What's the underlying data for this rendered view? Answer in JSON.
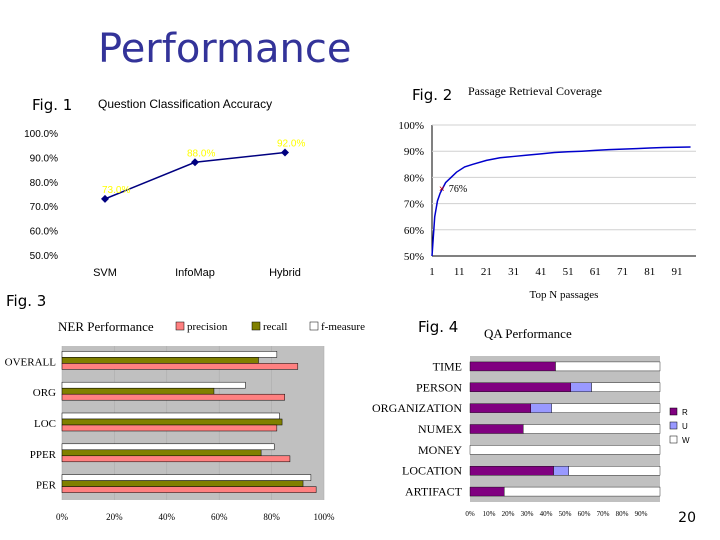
{
  "slide": {
    "title": "Performance",
    "fig_labels": [
      "Fig. 1",
      "Fig. 2",
      "Fig. 3",
      "Fig. 4"
    ],
    "page_number": "20"
  },
  "chart_data": [
    {
      "type": "line",
      "title": "Question Classification Accuracy",
      "categories": [
        "SVM",
        "InfoMap",
        "Hybrid"
      ],
      "values": [
        73.0,
        88.0,
        92.0
      ],
      "data_labels": [
        "73.0%",
        "88.0%",
        "92.0%"
      ],
      "ylim": [
        50,
        100
      ],
      "yticks": [
        "50.0%",
        "60.0%",
        "70.0%",
        "80.0%",
        "90.0%",
        "100.0%"
      ],
      "grid": false,
      "color": "#000080",
      "label_color": "#ffff00"
    },
    {
      "type": "line",
      "title": "Passage Retrieval Coverage",
      "xlabel": "Top N passages",
      "x": [
        1,
        2,
        3,
        4,
        5,
        6,
        8,
        10,
        13,
        16,
        21,
        26,
        31,
        36,
        41,
        46,
        51,
        56,
        61,
        66,
        71,
        76,
        81,
        86,
        91,
        96
      ],
      "y": [
        50,
        65,
        71,
        74,
        76,
        78,
        80,
        82,
        84,
        85,
        86.5,
        87.5,
        88,
        88.5,
        89,
        89.5,
        89.8,
        90,
        90.3,
        90.6,
        90.8,
        91,
        91.2,
        91.4,
        91.5,
        91.6
      ],
      "xticks": [
        "1",
        "11",
        "21",
        "31",
        "41",
        "51",
        "61",
        "71",
        "81",
        "91"
      ],
      "yticks": [
        "50%",
        "60%",
        "70%",
        "80%",
        "90%",
        "100%"
      ],
      "ylim": [
        50,
        100
      ],
      "xlim": [
        1,
        98
      ],
      "grid": true,
      "color": "#0000cc",
      "annotation": {
        "label": "76%",
        "x": 5,
        "y": 76
      }
    },
    {
      "type": "bar",
      "orientation": "horizontal",
      "title": "NER Performance",
      "categories": [
        "OVERALL",
        "ORG",
        "LOC",
        "PPER",
        "PER"
      ],
      "series": [
        {
          "name": "precision",
          "color": "#ff8080",
          "values": [
            90,
            85,
            82,
            87,
            97
          ]
        },
        {
          "name": "recall",
          "color": "#808000",
          "values": [
            75,
            58,
            84,
            76,
            92
          ]
        },
        {
          "name": "f-measure",
          "color": "#ffffff",
          "values": [
            82,
            70,
            83,
            81,
            95
          ]
        }
      ],
      "xticks": [
        "0%",
        "20%",
        "40%",
        "60%",
        "80%",
        "100%"
      ],
      "xlim": [
        0,
        100
      ],
      "legend": "top",
      "plot_bg": "#c0c0c0"
    },
    {
      "type": "bar",
      "orientation": "horizontal",
      "stacked": true,
      "title": "QA Performance",
      "categories": [
        "TIME",
        "PERSON",
        "ORGANIZATION",
        "NUMEX",
        "MONEY",
        "LOCATION",
        "ARTIFACT"
      ],
      "series": [
        {
          "name": "R",
          "color": "#800080",
          "values": [
            45,
            53,
            32,
            28,
            0,
            44,
            18
          ]
        },
        {
          "name": "U",
          "color": "#9999ff",
          "values": [
            0,
            11,
            11,
            0,
            0,
            8,
            0
          ]
        },
        {
          "name": "W",
          "color": "#ffffff",
          "values": [
            55,
            36,
            57,
            72,
            100,
            48,
            82
          ]
        }
      ],
      "xticks": [
        "0%",
        "10%",
        "20%",
        "30%",
        "40%",
        "50%",
        "60%",
        "70%",
        "80%",
        "90%"
      ],
      "xlim": [
        0,
        100
      ],
      "legend": "right",
      "plot_bg": "#c0c0c0"
    }
  ]
}
